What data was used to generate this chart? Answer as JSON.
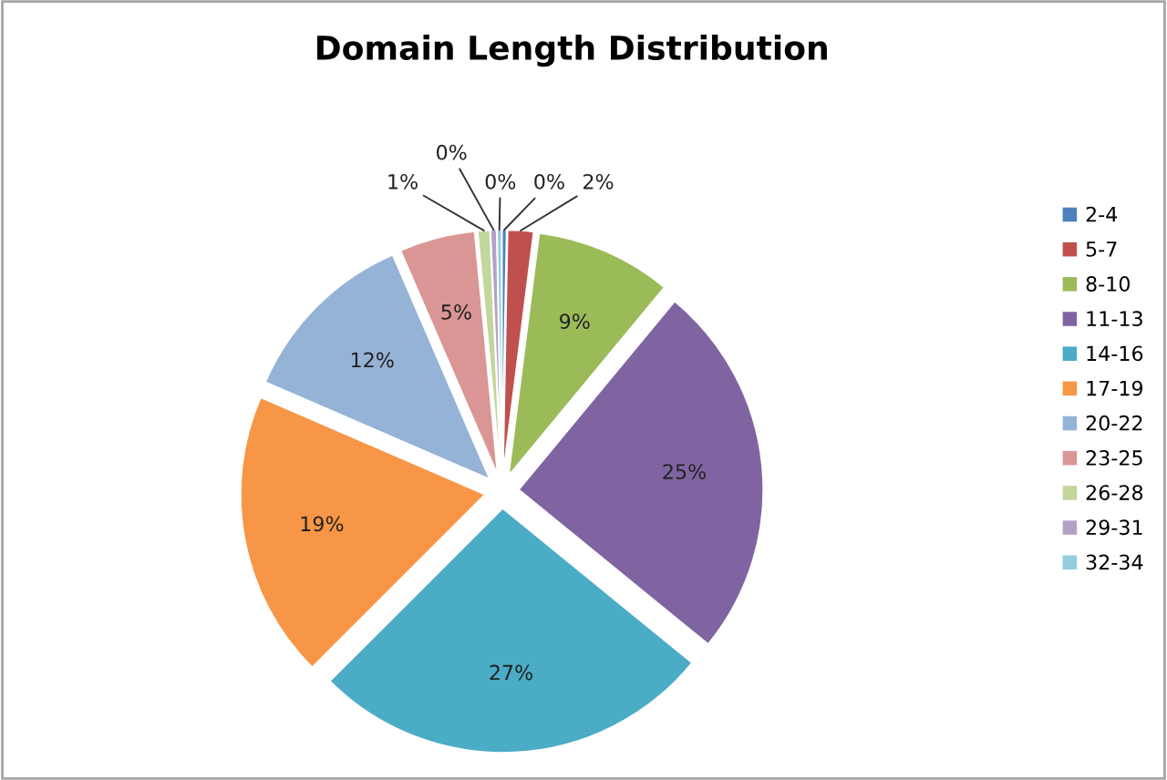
{
  "chart_data": {
    "type": "pie",
    "title": "Domain Length Distribution",
    "categories": [
      "2-4",
      "5-7",
      "8-10",
      "11-13",
      "14-16",
      "17-19",
      "20-22",
      "23-25",
      "26-28",
      "29-31",
      "32-34"
    ],
    "values": [
      0.3,
      1.7,
      9,
      24.9,
      26.6,
      19,
      12,
      5,
      0.8,
      0.4,
      0.3
    ],
    "value_labels": [
      "0%",
      "2%",
      "9%",
      "25%",
      "27%",
      "19%",
      "12%",
      "5%",
      "1%",
      "0%",
      "0%"
    ],
    "colors": [
      "#4f81bd",
      "#c0504d",
      "#9bbb59",
      "#8064a2",
      "#4bacc6",
      "#f79646",
      "#95b3d7",
      "#d99694",
      "#c3d69b",
      "#b3a2c7",
      "#93cddd"
    ],
    "legend": "right"
  }
}
